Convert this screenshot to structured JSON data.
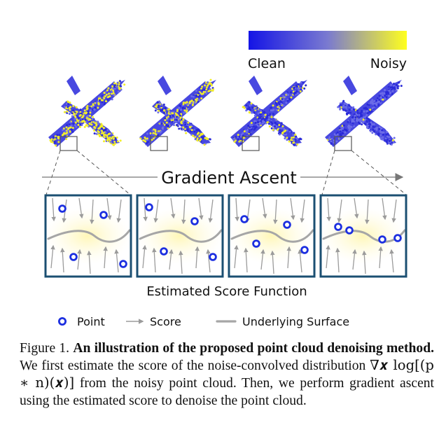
{
  "colorbar": {
    "left_label": "Clean",
    "right_label": "Noisy",
    "colors": [
      "#1414e6",
      "#ffff1e"
    ]
  },
  "heading": "Gradient Ascent",
  "subheading": "Estimated Score Function",
  "panels": [
    {
      "noise": 0.55,
      "points": [
        [
          24,
          19
        ],
        [
          83,
          28
        ],
        [
          40,
          88
        ],
        [
          111,
          98
        ]
      ]
    },
    {
      "noise": 0.38,
      "points": [
        [
          17,
          17
        ],
        [
          82,
          37
        ],
        [
          38,
          80
        ],
        [
          108,
          88
        ]
      ]
    },
    {
      "noise": 0.18,
      "points": [
        [
          22,
          34
        ],
        [
          83,
          42
        ],
        [
          39,
          69
        ],
        [
          108,
          78
        ]
      ]
    },
    {
      "noise": 0.03,
      "points": [
        [
          25,
          45
        ],
        [
          41,
          50
        ],
        [
          88,
          63
        ],
        [
          110,
          61
        ]
      ]
    }
  ],
  "legend": {
    "point": "Point",
    "score": "Score",
    "surface": "Underlying Surface"
  },
  "styles": {
    "panel_border": "#1b4f72",
    "point_color": "#1c2fe0",
    "arrow_color": "#9b9b9b",
    "surface_color": "#a6a6a6"
  },
  "caption": {
    "label": "Figure 1.",
    "bold": "An illustration of the proposed point cloud denoising method.",
    "text_1": "We first estimate the score of the noise-convolved distribution",
    "math": "∇𝒙 log[(p ∗ n)(𝒙)]",
    "text_2": "from the noisy point cloud. Then, we perform gradient ascent using the estimated score to denoise the point cloud."
  }
}
